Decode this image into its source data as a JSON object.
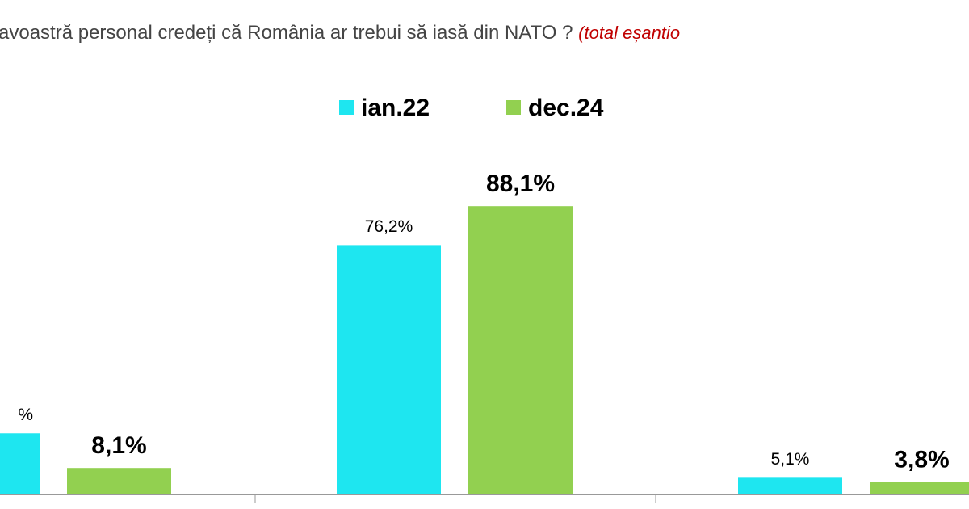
{
  "chart_data": {
    "type": "bar",
    "title": "avoastră personal credeți că România ar trebui să iasă din NATO ?",
    "subtitle": "(total eșantio",
    "categories": [
      null,
      null,
      null
    ],
    "series": [
      {
        "name": "ian.22",
        "color": "#1ee6f0",
        "values": [
          18.7,
          76.2,
          5.1
        ],
        "value_labels": [
          "%",
          "76,2%",
          "5,1%"
        ]
      },
      {
        "name": "dec.24",
        "color": "#92d050",
        "values": [
          8.1,
          88.1,
          3.8
        ],
        "value_labels": [
          "8,1%",
          "88,1%",
          "3,8%"
        ]
      }
    ],
    "ylim": [
      0,
      100
    ],
    "legend": "top"
  }
}
